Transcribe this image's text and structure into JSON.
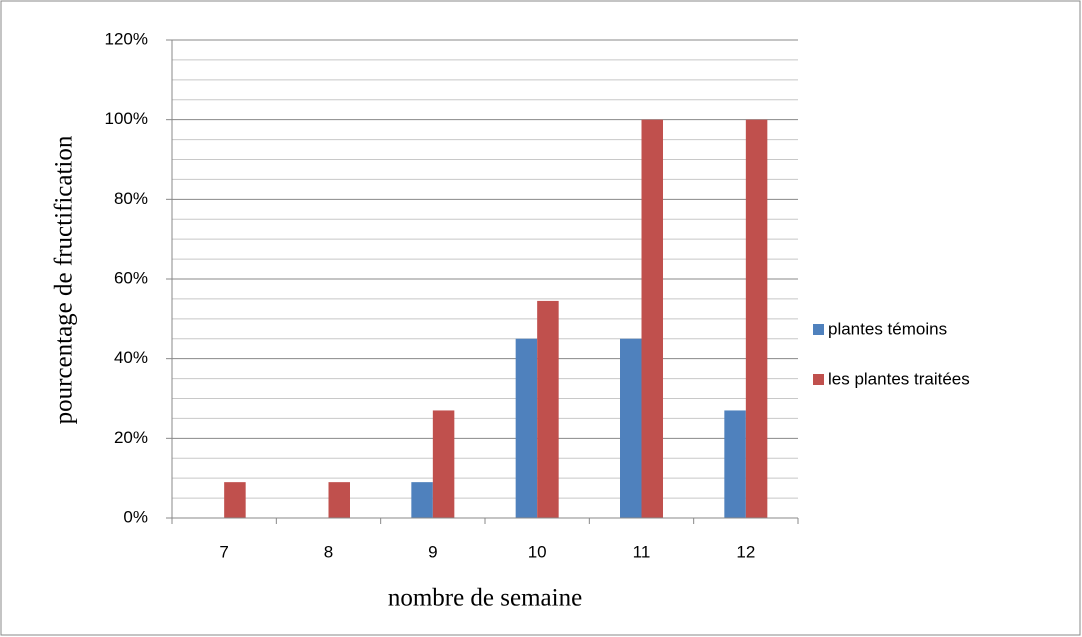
{
  "chart_data": {
    "type": "bar",
    "x_label": "nombre de semaine",
    "y_label": "pourcentage de fructification",
    "categories": [
      "7",
      "8",
      "9",
      "10",
      "11",
      "12"
    ],
    "series": [
      {
        "name": "plantes témoins",
        "color": "#4f81bd",
        "values": [
          0,
          0,
          9,
          45,
          45,
          27
        ]
      },
      {
        "name": "les plantes traitées",
        "color": "#c0504d",
        "values": [
          9,
          9,
          27,
          54.5,
          100,
          100
        ]
      }
    ],
    "ylim": [
      0,
      120
    ],
    "yticks": [
      {
        "value": 0,
        "label": "0%"
      },
      {
        "value": 20,
        "label": "20%"
      },
      {
        "value": 40,
        "label": "40%"
      },
      {
        "value": 60,
        "label": "60%"
      },
      {
        "value": 80,
        "label": "80%"
      },
      {
        "value": 100,
        "label": "100%"
      },
      {
        "value": 120,
        "label": "120%"
      }
    ],
    "yminorticks": [
      5,
      10,
      15,
      25,
      30,
      35,
      45,
      50,
      55,
      65,
      70,
      75,
      85,
      90,
      95,
      105,
      110,
      115
    ],
    "grid": true,
    "legend": "right"
  }
}
